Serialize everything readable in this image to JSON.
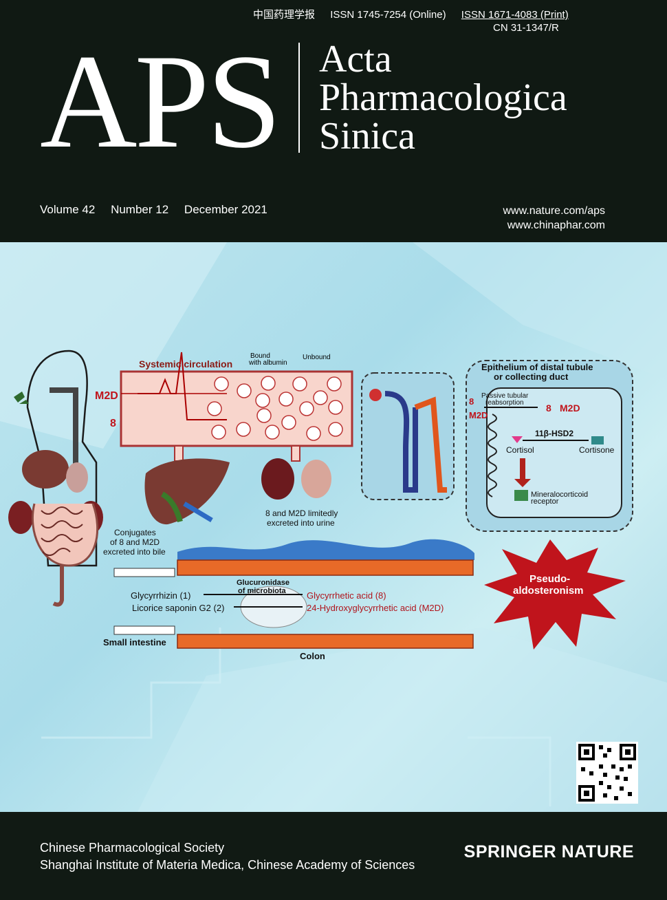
{
  "header": {
    "chinese_title": "中国药理学报",
    "issn_online": "ISSN  1745-7254 (Online)",
    "issn_print": "ISSN 1671-4083 (Print)",
    "cn": "CN 31-1347/R",
    "logo": "APS",
    "name_line1": "Acta",
    "name_line2": "Pharmacologica",
    "name_line3": "Sinica",
    "volume": "Volume 42",
    "number": "Number 12",
    "date": "December 2021",
    "url1": "www.nature.com/aps",
    "url2": "www.chinaphar.com"
  },
  "figure": {
    "systemic_circulation": "Systemic circulation",
    "bound_albumin_1": "Bound",
    "bound_albumin_2": "with albumin",
    "unbound": "Unbound",
    "m2d": "M2D",
    "eight": "8",
    "epithelium_1": "Epithelium of distal tubule",
    "epithelium_2": "or collecting duct",
    "passive_1": "Passive tubular",
    "passive_2": "reabsorption",
    "hsd": "11β-HSD2",
    "cortisol": "Cortisol",
    "cortisone": "Cortisone",
    "mineral_1": "Mineralocorticoid",
    "mineral_2": "receptor",
    "urine_1": "8 and M2D limitedly",
    "urine_2": "excreted into urine",
    "bile_1": "Conjugates",
    "bile_2": "of 8 and M2D",
    "bile_3": "excreted into bile",
    "pseudo_1": "Pseudo-",
    "pseudo_2": "aldosteronism",
    "glucuronidase_1": "Glucuronidase",
    "glucuronidase_2": "of microbiota",
    "glycyrrhizin": "Glycyrrhizin (1)",
    "licorice": "Licorice saponin G2 (2)",
    "gly_acid": "Glycyrrhetic acid (8)",
    "hydroxy_acid": "24-Hydroxyglycyrrhetic acid (M2D)",
    "small_intestine": "Small intestine",
    "colon": "Colon"
  },
  "footer": {
    "society1": "Chinese Pharmacological Society",
    "society2": "Shanghai Institute of Materia Medica, Chinese Academy of Sciences",
    "publisher": "SPRINGER NATURE"
  },
  "colors": {
    "background": "#101913",
    "art_bg": "#b3e0ec",
    "accent_red": "#c0141c",
    "liver": "#7a3a32"
  }
}
